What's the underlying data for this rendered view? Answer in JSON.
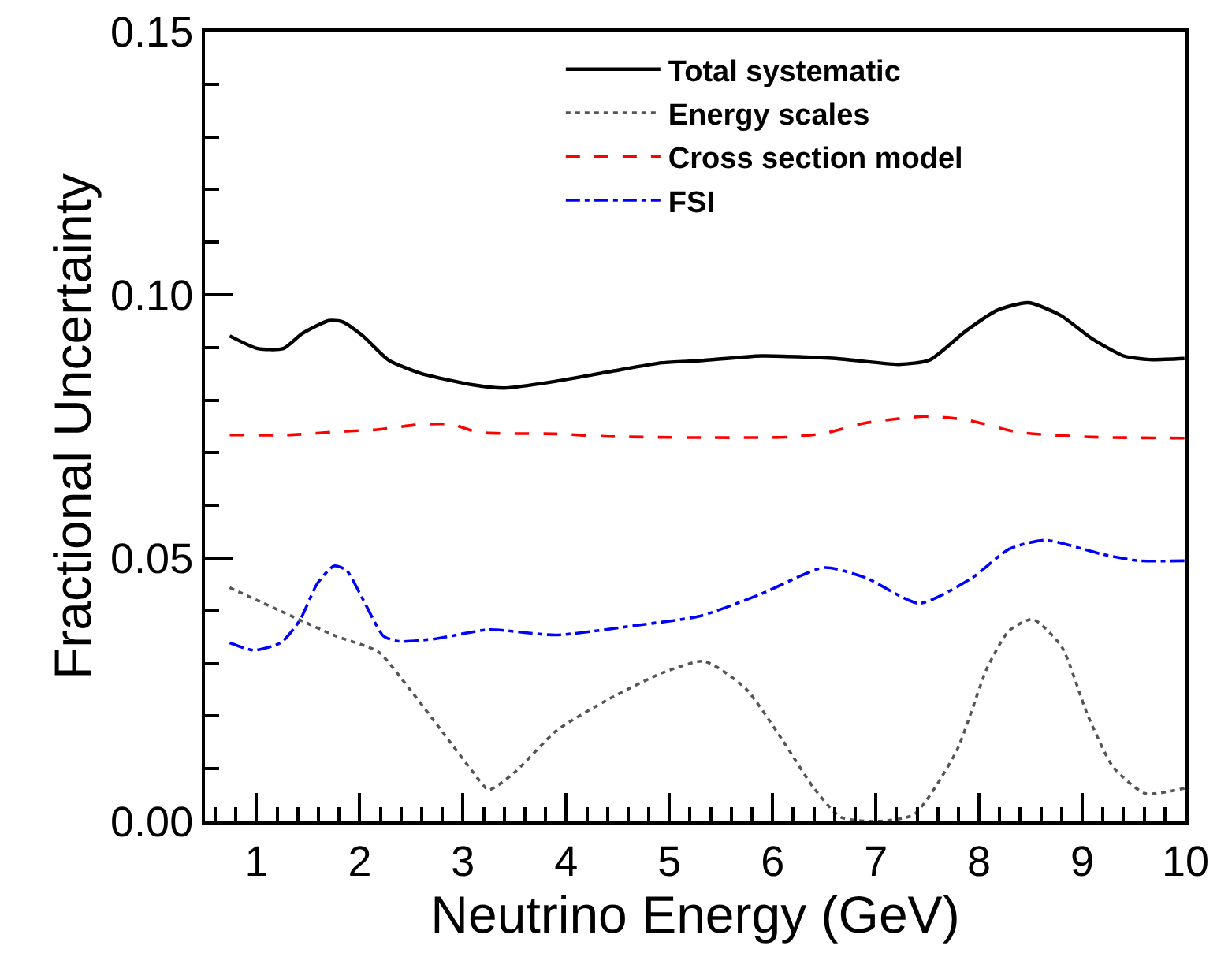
{
  "chart_data": {
    "type": "line",
    "xlabel": "Neutrino Energy (GeV)",
    "ylabel": "Fractional Uncertainty",
    "xlim": [
      0.5,
      10
    ],
    "ylim": [
      0,
      0.15
    ],
    "xticks": [
      1,
      2,
      3,
      4,
      5,
      6,
      7,
      8,
      9,
      10,
      {
        "value": 0.6,
        "label": null
      },
      {
        "value": 0.8,
        "label": null
      },
      {
        "value": 1.2,
        "label": null
      },
      {
        "value": 1.4,
        "label": null
      },
      {
        "value": 1.6,
        "label": null
      },
      {
        "value": 1.8,
        "label": null
      },
      {
        "value": 2.2,
        "label": null
      },
      {
        "value": 2.4,
        "label": null
      },
      {
        "value": 2.6,
        "label": null
      },
      {
        "value": 2.8,
        "label": null
      },
      {
        "value": 3.2,
        "label": null
      },
      {
        "value": 3.4,
        "label": null
      },
      {
        "value": 3.6,
        "label": null
      },
      {
        "value": 3.8,
        "label": null
      },
      {
        "value": 4.2,
        "label": null
      },
      {
        "value": 4.4,
        "label": null
      },
      {
        "value": 4.6,
        "label": null
      },
      {
        "value": 4.8,
        "label": null
      },
      {
        "value": 5.2,
        "label": null
      },
      {
        "value": 5.4,
        "label": null
      },
      {
        "value": 5.6,
        "label": null
      },
      {
        "value": 5.8,
        "label": null
      },
      {
        "value": 6.2,
        "label": null
      },
      {
        "value": 6.4,
        "label": null
      },
      {
        "value": 6.6,
        "label": null
      },
      {
        "value": 6.8,
        "label": null
      },
      {
        "value": 7.2,
        "label": null
      },
      {
        "value": 7.4,
        "label": null
      },
      {
        "value": 7.6,
        "label": null
      },
      {
        "value": 7.8,
        "label": null
      },
      {
        "value": 8.2,
        "label": null
      },
      {
        "value": 8.4,
        "label": null
      },
      {
        "value": 8.6,
        "label": null
      },
      {
        "value": 8.8,
        "label": null
      },
      {
        "value": 9.2,
        "label": null
      },
      {
        "value": 9.4,
        "label": null
      },
      {
        "value": 9.6,
        "label": null
      },
      {
        "value": 9.8,
        "label": null
      }
    ],
    "yticks": [
      {
        "value": 0,
        "label": "0.00"
      },
      {
        "value": 0.05,
        "label": "0.05"
      },
      {
        "value": 0.1,
        "label": "0.10"
      },
      {
        "value": 0.15,
        "label": "0.15"
      },
      {
        "value": 0.01,
        "label": null
      },
      {
        "value": 0.02,
        "label": null
      },
      {
        "value": 0.03,
        "label": null
      },
      {
        "value": 0.04,
        "label": null
      },
      {
        "value": 0.06,
        "label": null
      },
      {
        "value": 0.07,
        "label": null
      },
      {
        "value": 0.08,
        "label": null
      },
      {
        "value": 0.09,
        "label": null
      },
      {
        "value": 0.11,
        "label": null
      },
      {
        "value": 0.12,
        "label": null
      },
      {
        "value": 0.13,
        "label": null
      },
      {
        "value": 0.14,
        "label": null
      }
    ],
    "grid": false,
    "legend": "top right",
    "marker": "none",
    "series": [
      {
        "name": "Total systematic",
        "color": "#000000",
        "line_style": "solid",
        "x": [
          0.74,
          1.01,
          1.26,
          1.44,
          1.7,
          1.83,
          2.03,
          2.28,
          2.59,
          3.1,
          3.4,
          3.9,
          4.42,
          4.93,
          5.3,
          5.89,
          6.61,
          7.22,
          7.52,
          7.87,
          8.18,
          8.48,
          8.79,
          9.1,
          9.4,
          9.65,
          9.99
        ],
        "values": [
          0.0922,
          0.0898,
          0.0898,
          0.0926,
          0.0951,
          0.0949,
          0.0922,
          0.0876,
          0.0851,
          0.0829,
          0.0823,
          0.0836,
          0.0854,
          0.0871,
          0.0875,
          0.0884,
          0.0879,
          0.0868,
          0.0876,
          0.0931,
          0.0971,
          0.0985,
          0.0961,
          0.0916,
          0.0884,
          0.0877,
          0.0879
        ]
      },
      {
        "name": "Energy scales",
        "color": "#555555",
        "line_style": "dotted",
        "x": [
          0.74,
          1.37,
          1.77,
          2.18,
          2.48,
          2.79,
          3.1,
          3.25,
          3.5,
          3.91,
          4.42,
          4.93,
          5.34,
          5.74,
          6.1,
          6.4,
          6.66,
          7.0,
          7.37,
          7.78,
          8.08,
          8.29,
          8.52,
          8.8,
          9.05,
          9.3,
          9.61,
          9.99
        ],
        "values": [
          0.0444,
          0.0387,
          0.0352,
          0.0322,
          0.0252,
          0.0173,
          0.0093,
          0.006,
          0.0093,
          0.0173,
          0.0233,
          0.0282,
          0.0304,
          0.0252,
          0.0153,
          0.0063,
          0.0008,
          0.0,
          0.0013,
          0.0133,
          0.0292,
          0.0362,
          0.0384,
          0.0332,
          0.0203,
          0.0103,
          0.0053,
          0.0063
        ]
      },
      {
        "name": "Cross section model",
        "color": "#ff0000",
        "line_style": "dashed",
        "x": [
          0.74,
          1.31,
          1.87,
          2.17,
          2.59,
          2.89,
          3.15,
          3.9,
          4.42,
          5.3,
          6.15,
          6.5,
          6.91,
          7.47,
          7.87,
          8.38,
          9.1,
          9.99
        ],
        "values": [
          0.0734,
          0.0734,
          0.0741,
          0.0744,
          0.0754,
          0.0754,
          0.0739,
          0.0736,
          0.0731,
          0.0729,
          0.073,
          0.0737,
          0.0757,
          0.0769,
          0.0763,
          0.0739,
          0.073,
          0.0728
        ]
      },
      {
        "name": "FSI",
        "color": "#0000ff",
        "line_style": "dashdot",
        "x": [
          0.74,
          0.98,
          1.24,
          1.42,
          1.59,
          1.75,
          1.87,
          2.03,
          2.23,
          2.38,
          2.74,
          3.25,
          3.9,
          4.67,
          5.3,
          5.89,
          6.5,
          6.91,
          7.42,
          7.93,
          8.29,
          8.64,
          9.2,
          9.55,
          9.99
        ],
        "values": [
          0.0339,
          0.0325,
          0.034,
          0.0382,
          0.0452,
          0.0485,
          0.0477,
          0.0422,
          0.0352,
          0.0342,
          0.0347,
          0.0364,
          0.0354,
          0.0372,
          0.039,
          0.0432,
          0.0482,
          0.0462,
          0.0414,
          0.0462,
          0.0517,
          0.0534,
          0.0507,
          0.0495,
          0.0495
        ]
      }
    ]
  }
}
